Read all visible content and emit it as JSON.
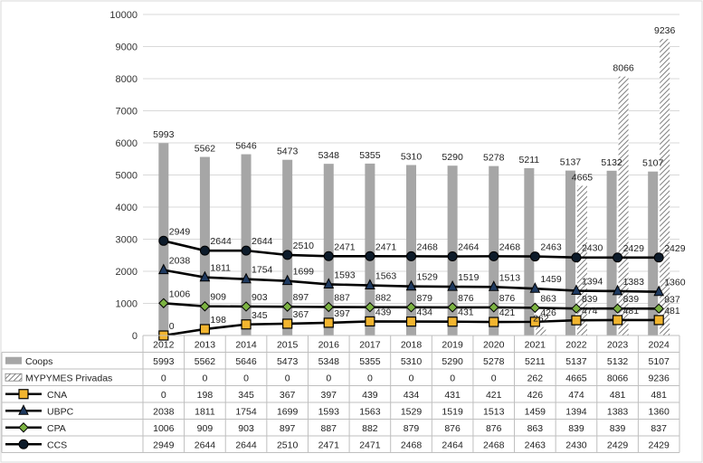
{
  "chart_data": {
    "type": "bar",
    "categories": [
      "2012",
      "2013",
      "2014",
      "2015",
      "2016",
      "2017",
      "2018",
      "2019",
      "2020",
      "2021",
      "2022",
      "2023",
      "2024"
    ],
    "ylim": [
      0,
      10000
    ],
    "yticks": [
      "0",
      "1000",
      "2000",
      "3000",
      "4000",
      "5000",
      "6000",
      "7000",
      "8000",
      "9000",
      "10000"
    ],
    "grid": true,
    "legend_position": "data-table-below",
    "series": [
      {
        "name": "Coops",
        "kind": "bar",
        "style": "solid-gray",
        "color": "#A6A6A6",
        "values": [
          5993,
          5562,
          5646,
          5473,
          5348,
          5355,
          5310,
          5290,
          5278,
          5211,
          5137,
          5132,
          5107
        ]
      },
      {
        "name": "MYPYMES Privadas",
        "kind": "bar",
        "style": "hatched",
        "color": "#808080",
        "values": [
          0,
          0,
          0,
          0,
          0,
          0,
          0,
          0,
          0,
          262,
          4665,
          8066,
          9236
        ]
      },
      {
        "name": "CNA",
        "kind": "line",
        "marker": "square",
        "marker_color": "#F2B52F",
        "color": "#000000",
        "values": [
          0,
          198,
          345,
          367,
          397,
          439,
          434,
          431,
          421,
          426,
          474,
          481,
          481
        ]
      },
      {
        "name": "UBPC",
        "kind": "line",
        "marker": "triangle",
        "marker_color": "#1F3A60",
        "color": "#000000",
        "values": [
          2038,
          1811,
          1754,
          1699,
          1593,
          1563,
          1529,
          1519,
          1513,
          1459,
          1394,
          1383,
          1360
        ]
      },
      {
        "name": "CPA",
        "kind": "line",
        "marker": "diamond",
        "marker_color": "#7CB342",
        "color": "#000000",
        "values": [
          1006,
          909,
          903,
          897,
          887,
          882,
          879,
          876,
          876,
          863,
          839,
          839,
          837
        ]
      },
      {
        "name": "CCS",
        "kind": "line",
        "marker": "circle",
        "marker_color": "#0D1B2A",
        "color": "#000000",
        "values": [
          2949,
          2644,
          2644,
          2510,
          2471,
          2471,
          2468,
          2464,
          2468,
          2463,
          2430,
          2429,
          2429
        ]
      }
    ]
  }
}
